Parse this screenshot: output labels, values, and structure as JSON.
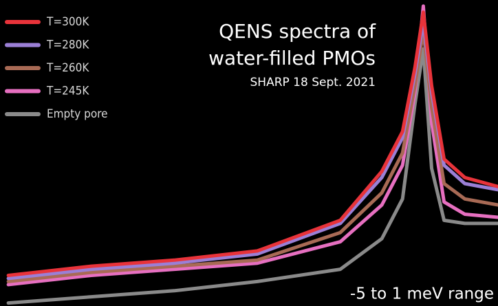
{
  "chart_data": {
    "type": "line",
    "title": [
      "QENS spectra of",
      "water-filled PMOs"
    ],
    "subtitle": "SHARP 18 Sept. 2021",
    "annotation": "-5 to 1 meV range",
    "legend": "top-left",
    "x": [
      -5,
      -4,
      -3,
      -2,
      -1,
      -0.5,
      -0.25,
      -0.1,
      0,
      0.1,
      0.25,
      0.5,
      0.9
    ],
    "xlim": [
      -5.1,
      0.9
    ],
    "ylim": [
      0,
      1
    ],
    "series": [
      {
        "name": "T=300K",
        "color": "#e8333a",
        "values": [
          0.1,
          0.13,
          0.15,
          0.18,
          0.28,
          0.44,
          0.57,
          0.78,
          0.96,
          0.72,
          0.48,
          0.42,
          0.39
        ]
      },
      {
        "name": "T=280K",
        "color": "#9b7fd6",
        "values": [
          0.09,
          0.12,
          0.14,
          0.17,
          0.27,
          0.42,
          0.55,
          0.76,
          0.93,
          0.7,
          0.46,
          0.4,
          0.38
        ]
      },
      {
        "name": "T=260K",
        "color": "#a86a55",
        "values": [
          0.08,
          0.11,
          0.13,
          0.15,
          0.24,
          0.37,
          0.5,
          0.72,
          0.9,
          0.65,
          0.4,
          0.35,
          0.33
        ]
      },
      {
        "name": "T=245K",
        "color": "#e66fc0",
        "values": [
          0.07,
          0.1,
          0.12,
          0.14,
          0.21,
          0.33,
          0.46,
          0.7,
          0.98,
          0.6,
          0.34,
          0.3,
          0.29
        ]
      },
      {
        "name": "Empty pore",
        "color": "#8a8a8a",
        "values": [
          0.01,
          0.03,
          0.05,
          0.08,
          0.12,
          0.22,
          0.35,
          0.66,
          0.84,
          0.45,
          0.28,
          0.27,
          0.27
        ]
      }
    ]
  }
}
